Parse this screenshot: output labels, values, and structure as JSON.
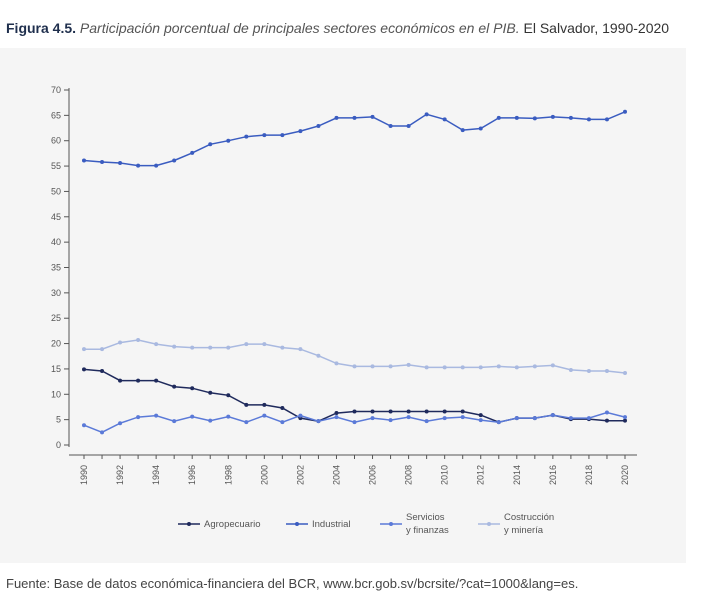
{
  "figure": {
    "number": "Figura 4.5.",
    "title": "Participación porcentual de principales sectores económicos en el PIB.",
    "subtitle": "El Salvador, 1990-2020"
  },
  "footer": {
    "source": "Fuente: Base de datos económica-financiera del BCR, www.bcr.gob.sv/bcrsite/?cat=1000&lang=es."
  },
  "chart_data": {
    "type": "line",
    "title": "",
    "xlabel": "",
    "ylabel": "",
    "ylim": [
      0,
      70
    ],
    "xlim": [
      1990,
      2020
    ],
    "yticks": [
      0,
      5,
      10,
      15,
      20,
      25,
      30,
      35,
      40,
      45,
      50,
      55,
      60,
      65,
      70
    ],
    "xticks": [
      1990,
      1992,
      1994,
      1996,
      1998,
      2000,
      2002,
      2004,
      2006,
      2008,
      2010,
      2012,
      2014,
      2016,
      2018,
      2020
    ],
    "grid": false,
    "legend_position": "bottom",
    "x": [
      1990,
      1991,
      1992,
      1993,
      1994,
      1995,
      1996,
      1997,
      1998,
      1999,
      2000,
      2001,
      2002,
      2003,
      2004,
      2005,
      2006,
      2007,
      2008,
      2009,
      2010,
      2011,
      2012,
      2013,
      2014,
      2015,
      2016,
      2017,
      2018,
      2019,
      2020
    ],
    "series": [
      {
        "name": "Agropecuario",
        "color": "#1f2a5c",
        "values": [
          14.9,
          14.6,
          12.7,
          12.7,
          12.7,
          11.5,
          11.2,
          10.3,
          9.8,
          7.9,
          7.9,
          7.3,
          5.3,
          4.7,
          6.3,
          6.6,
          6.6,
          6.6,
          6.6,
          6.6,
          6.6,
          6.6,
          5.9,
          4.5,
          5.3,
          5.3,
          5.9,
          5.1,
          5.1,
          4.8,
          4.8
        ]
      },
      {
        "name": "Industrial",
        "color": "#3a5cc0",
        "values": [
          56.1,
          55.8,
          55.6,
          55.1,
          55.1,
          56.1,
          57.6,
          59.3,
          60.0,
          60.8,
          61.1,
          61.1,
          61.9,
          62.9,
          64.5,
          64.5,
          64.7,
          62.9,
          62.9,
          65.2,
          64.2,
          62.1,
          62.4,
          64.5,
          64.5,
          64.4,
          64.7,
          64.5,
          64.2,
          64.2,
          65.7
        ]
      },
      {
        "name": "Servicios y finanzas",
        "color": "#5b7ad8",
        "values": [
          3.9,
          2.5,
          4.3,
          5.5,
          5.8,
          4.7,
          5.6,
          4.8,
          5.6,
          4.5,
          5.8,
          4.5,
          5.8,
          4.7,
          5.5,
          4.5,
          5.3,
          4.9,
          5.5,
          4.7,
          5.3,
          5.5,
          4.9,
          4.5,
          5.3,
          5.3,
          5.9,
          5.3,
          5.3,
          6.4,
          5.5
        ]
      },
      {
        "name": "Costrucción y minería",
        "color": "#a9b9e0",
        "values": [
          18.9,
          18.9,
          20.2,
          20.7,
          19.9,
          19.4,
          19.2,
          19.2,
          19.2,
          19.9,
          19.9,
          19.2,
          18.9,
          17.6,
          16.1,
          15.5,
          15.5,
          15.5,
          15.8,
          15.3,
          15.3,
          15.3,
          15.3,
          15.5,
          15.3,
          15.5,
          15.7,
          14.8,
          14.6,
          14.6,
          14.2
        ]
      }
    ],
    "legend": [
      {
        "line1": "Agropecuario",
        "line2": ""
      },
      {
        "line1": "Industrial",
        "line2": ""
      },
      {
        "line1": "Servicios",
        "line2": "y finanzas"
      },
      {
        "line1": "Costrucción",
        "line2": "y minería"
      }
    ]
  }
}
